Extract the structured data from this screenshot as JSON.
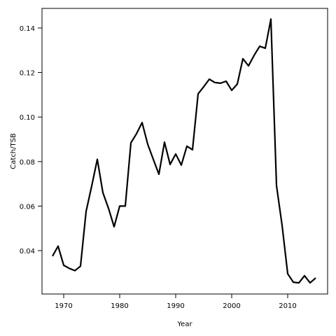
{
  "chart_data": {
    "type": "line",
    "x_label": "Year",
    "y_label": "Catch/TSB",
    "x": [
      1968,
      1969,
      1970,
      1971,
      1972,
      1973,
      1974,
      1975,
      1976,
      1977,
      1978,
      1979,
      1980,
      1981,
      1982,
      1983,
      1984,
      1985,
      1986,
      1987,
      1988,
      1989,
      1990,
      1991,
      1992,
      1993,
      1994,
      1995,
      1996,
      1997,
      1998,
      1999,
      2000,
      2001,
      2002,
      2003,
      2004,
      2005,
      2006,
      2007,
      2008,
      2009,
      2010,
      2011,
      2012,
      2013,
      2014,
      2015
    ],
    "series": [
      {
        "color": "#000000",
        "values": [
          0.0375,
          0.042,
          0.0334,
          0.032,
          0.031,
          0.033,
          0.0576,
          0.069,
          0.081,
          0.066,
          0.059,
          0.0507,
          0.06,
          0.06,
          0.0884,
          0.0925,
          0.0975,
          0.0878,
          0.081,
          0.0743,
          0.0887,
          0.0787,
          0.0834,
          0.0784,
          0.0869,
          0.0853,
          0.1104,
          0.1136,
          0.117,
          0.1155,
          0.1152,
          0.1161,
          0.112,
          0.1148,
          0.1262,
          0.123,
          0.1277,
          0.1318,
          0.1309,
          0.144,
          0.0692,
          0.0513,
          0.0296,
          0.0258,
          0.0255,
          0.0287,
          0.0255,
          0.0277
        ]
      }
    ],
    "xlim": [
      1966.125,
      2017.125
    ],
    "xticks": [
      1970,
      1980,
      1990,
      2000,
      2010
    ],
    "ylim": [
      0.0205,
      0.1488
    ],
    "yticks": [
      0.04,
      0.06,
      0.08,
      {
        "value": 0.1,
        "label": "0.10"
      },
      0.12,
      0.14
    ]
  }
}
